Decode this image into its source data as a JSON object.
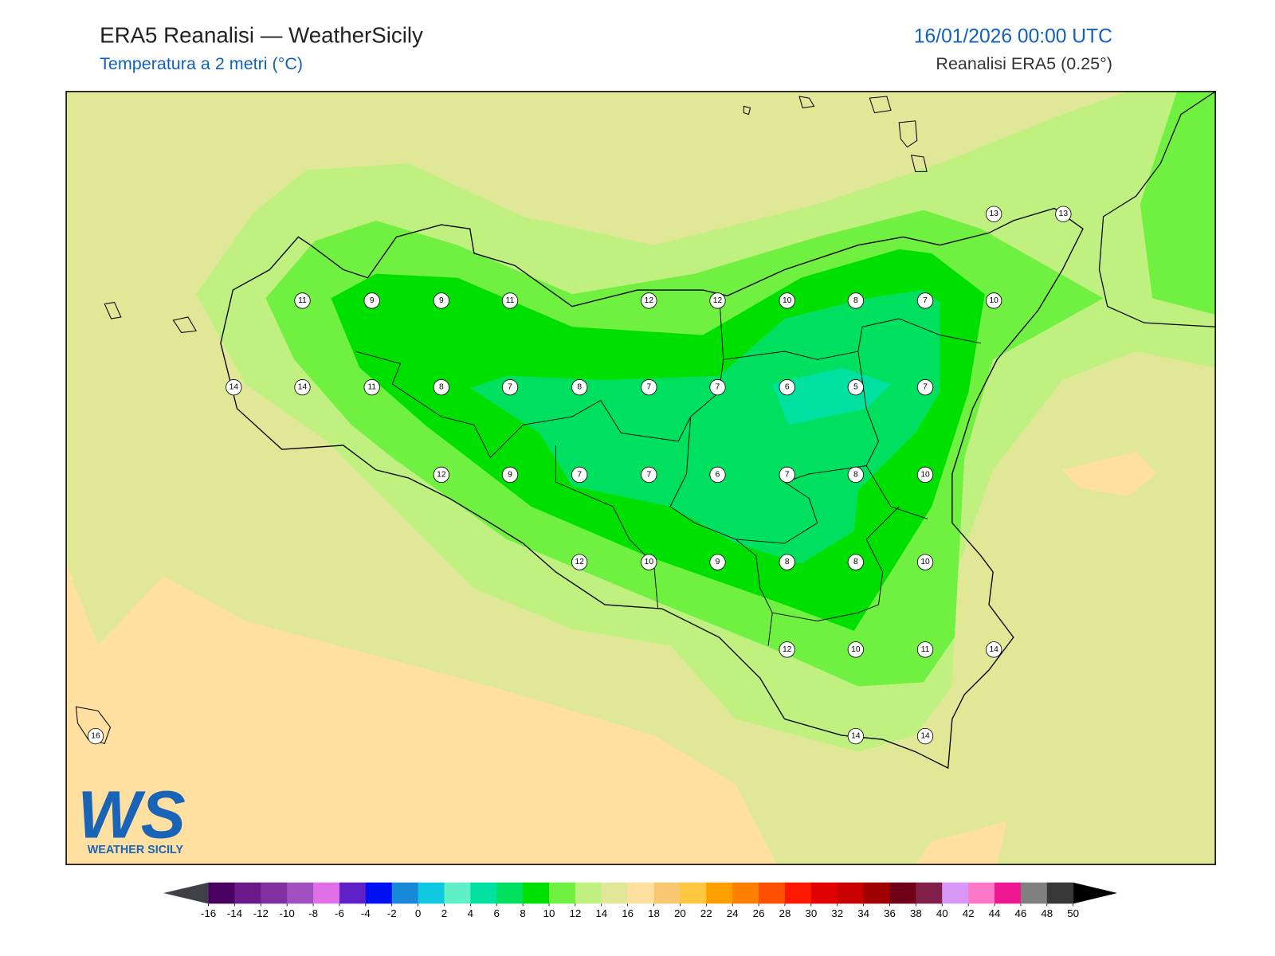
{
  "header": {
    "title": "ERA5 Reanalisi — WeatherSicily",
    "subtitle": "Temperatura a 2 metri (°C)",
    "datetime": "16/01/2026 00:00 UTC",
    "source": "Reanalisi ERA5 (0.25°)"
  },
  "stations": [
    13,
    13,
    11,
    9,
    9,
    11,
    12,
    12,
    10,
    8,
    7,
    10,
    14,
    14,
    11,
    8,
    7,
    8,
    7,
    7,
    6,
    5,
    7,
    12,
    9,
    7,
    7,
    6,
    7,
    8,
    10,
    12,
    10,
    9,
    8,
    8,
    10,
    12,
    10,
    11,
    14,
    16,
    14,
    14
  ],
  "colorbar": {
    "ticks": [
      -16,
      -14,
      -12,
      -10,
      -8,
      -6,
      -4,
      -2,
      0,
      2,
      4,
      6,
      8,
      10,
      12,
      14,
      16,
      18,
      20,
      22,
      24,
      26,
      28,
      30,
      32,
      34,
      36,
      38,
      40,
      42,
      44,
      46,
      48,
      50
    ],
    "colors": [
      "#4a0060",
      "#6a1a8a",
      "#8030a0",
      "#a050c0",
      "#e070e8",
      "#6020c8",
      "#0010f0",
      "#1888d8",
      "#10c8e0",
      "#60f0c8",
      "#00e0a0",
      "#00e060",
      "#00e000",
      "#70f040",
      "#c0f080",
      "#e0e898",
      "#ffe0a0",
      "#f8c870",
      "#ffc840",
      "#ffa000",
      "#ff8000",
      "#ff5000",
      "#ff1800",
      "#e00000",
      "#c80000",
      "#a00000",
      "#700018",
      "#802048",
      "#d898f8",
      "#ff78c8",
      "#f01890",
      "#808080",
      "#383838"
    ]
  },
  "logo": {
    "mark": "WS",
    "text": "WEATHER SICILY"
  }
}
